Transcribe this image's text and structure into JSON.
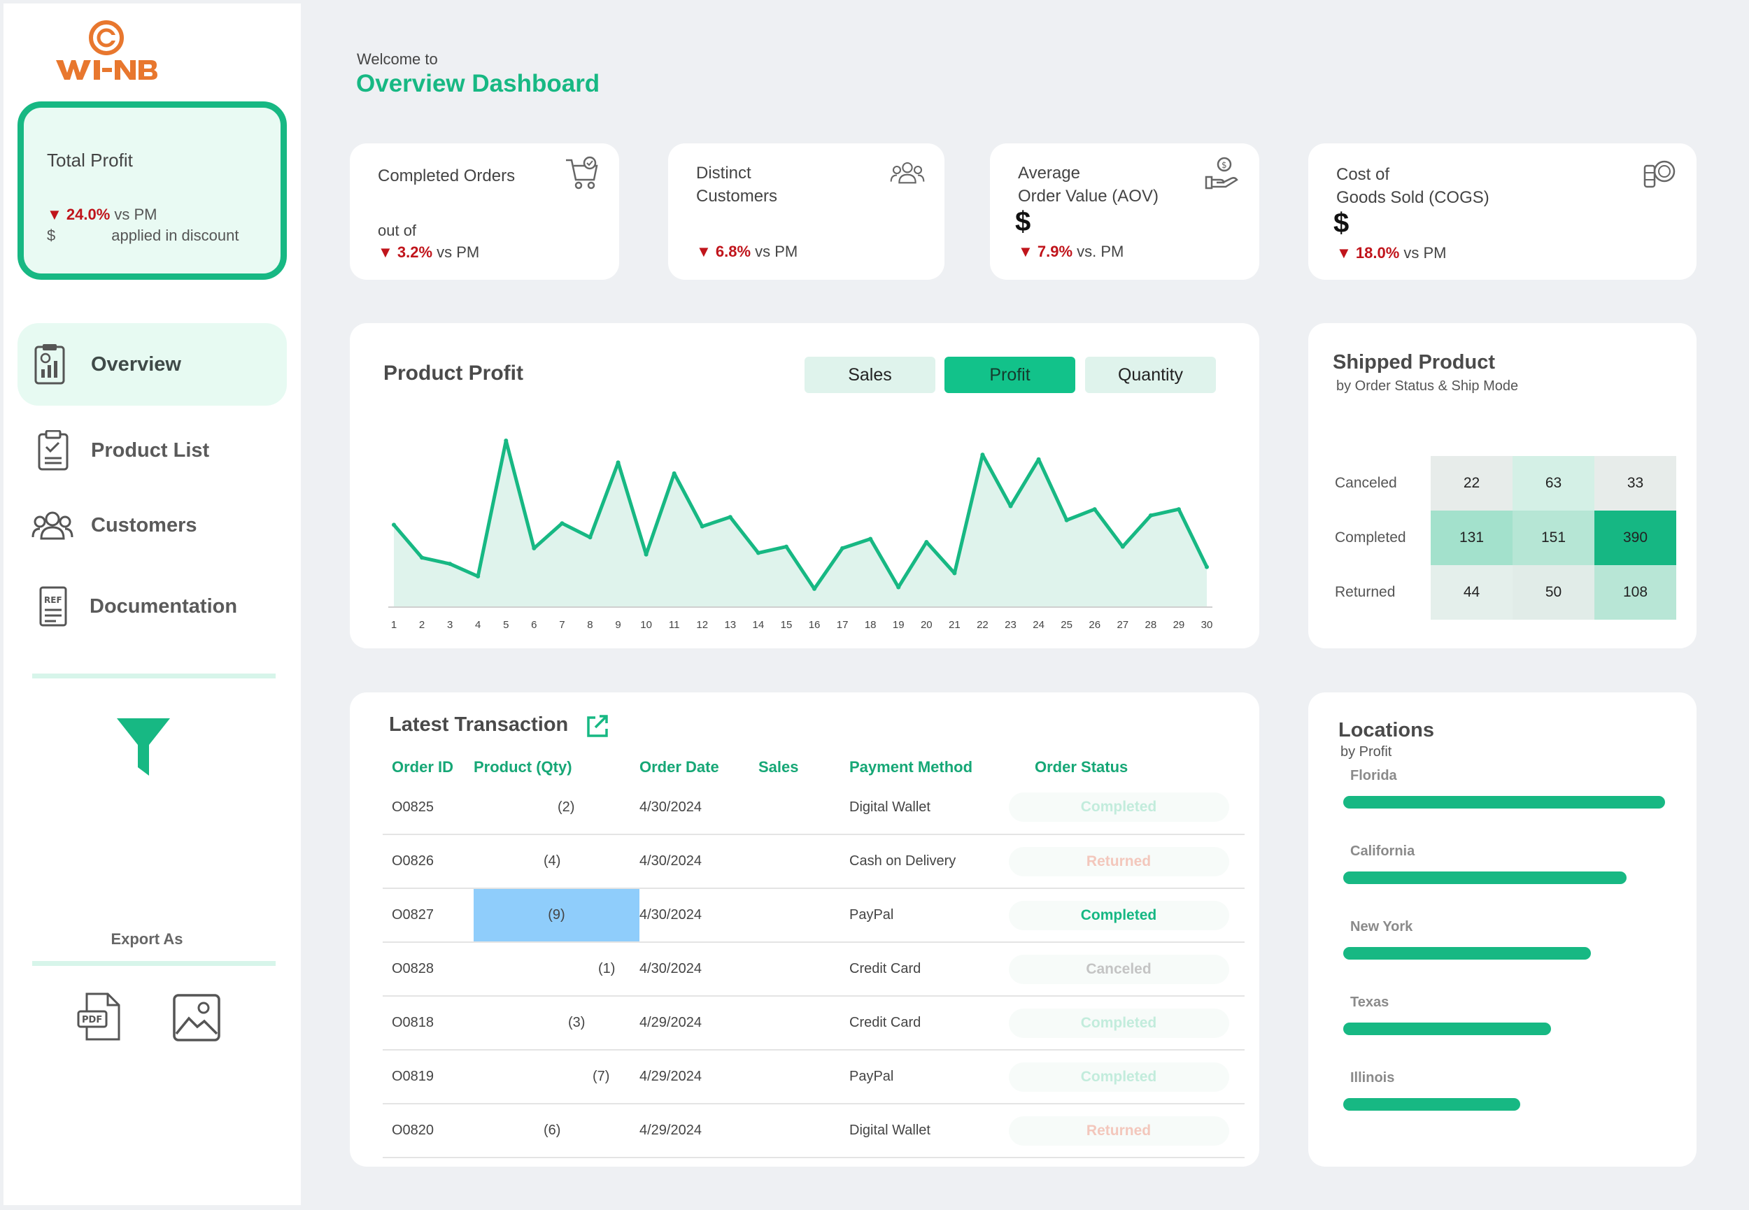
{
  "brand": {
    "logo_text": "WI-NB"
  },
  "kpi_sidebar": {
    "title": "Total Profit",
    "trend_pct": "▼ 24.0%",
    "trend_suffix": " vs PM",
    "currency": "$",
    "discount_text": "applied in discount"
  },
  "nav": [
    {
      "label": "Overview",
      "icon": "report-icon",
      "active": true
    },
    {
      "label": "Product List",
      "icon": "clipboard-icon",
      "active": false
    },
    {
      "label": "Customers",
      "icon": "users-icon",
      "active": false
    },
    {
      "label": "Documentation",
      "icon": "document-icon",
      "active": false
    }
  ],
  "filter": {
    "icon": "filter-icon"
  },
  "export": {
    "label": "Export As",
    "pdf_icon": "pdf-icon",
    "image_icon": "image-icon"
  },
  "header": {
    "welcome": "Welcome to",
    "title": "Overview Dashboard"
  },
  "kpis": [
    {
      "title": "Completed Orders",
      "sub": "out of",
      "dollar": "",
      "trend_pct": "▼ 3.2%",
      "trend_suffix": " vs PM",
      "icon": "cart-icon"
    },
    {
      "title": "Distinct\nCustomers",
      "sub": "",
      "dollar": "",
      "trend_pct": "▼ 6.8%",
      "trend_suffix": " vs PM",
      "icon": "users-icon"
    },
    {
      "title": "Average\nOrder Value (AOV)",
      "sub": "",
      "dollar": "$",
      "trend_pct": "▼ 7.9%",
      "trend_suffix": " vs. PM",
      "icon": "money-hand-icon"
    },
    {
      "title": "Cost of\nGoods Sold (COGS)",
      "sub": "",
      "dollar": "$",
      "trend_pct": "▼ 18.0%",
      "trend_suffix": " vs PM",
      "icon": "coins-icon"
    }
  ],
  "product_profit": {
    "title": "Product Profit",
    "toggles": [
      {
        "label": "Sales",
        "active": false
      },
      {
        "label": "Profit",
        "active": true
      },
      {
        "label": "Quantity",
        "active": false
      }
    ]
  },
  "chart_data": {
    "type": "area",
    "title": "Product Profit",
    "x": [
      1,
      2,
      3,
      4,
      5,
      6,
      7,
      8,
      9,
      10,
      11,
      12,
      13,
      14,
      15,
      16,
      17,
      18,
      19,
      20,
      21,
      22,
      23,
      24,
      25,
      26,
      27,
      28,
      29,
      30
    ],
    "values": [
      0.46,
      0.25,
      0.21,
      0.13,
      1.0,
      0.31,
      0.47,
      0.38,
      0.86,
      0.27,
      0.79,
      0.45,
      0.51,
      0.28,
      0.32,
      0.05,
      0.31,
      0.37,
      0.06,
      0.35,
      0.15,
      0.91,
      0.58,
      0.88,
      0.49,
      0.56,
      0.32,
      0.52,
      0.56,
      0.19
    ],
    "ylim": [
      0,
      1
    ],
    "color": "#17b883",
    "fill": "#dff3ec",
    "grid": false
  },
  "shipped": {
    "title": "Shipped Product",
    "subtitle": "by Order Status & Ship Mode",
    "rows": [
      {
        "label": "Canceled",
        "values": [
          "22",
          "63",
          "33"
        ],
        "shades": [
          "#e7ecea",
          "#d4f0e6",
          "#e7ecea"
        ]
      },
      {
        "label": "Completed",
        "values": [
          "131",
          "151",
          "390"
        ],
        "shades": [
          "#a3e1cc",
          "#b6e6d5",
          "#16b783"
        ]
      },
      {
        "label": "Returned",
        "values": [
          "44",
          "50",
          "108"
        ],
        "shades": [
          "#e4efeb",
          "#e1ece8",
          "#b8e6d6"
        ]
      }
    ]
  },
  "transactions": {
    "title": "Latest Transaction",
    "link_icon": "external-link-icon",
    "columns": [
      "Order ID",
      "Product (Qty)",
      "Order Date",
      "Sales",
      "Payment Method",
      "Order Status"
    ],
    "rows": [
      {
        "id": "O0825",
        "qty": "(2)",
        "date": "4/30/2024",
        "sales": "",
        "payment": "Digital Wallet",
        "status": "Completed",
        "status_color": "#c2ecdc",
        "highlight": false
      },
      {
        "id": "O0826",
        "qty": "(4)",
        "date": "4/30/2024",
        "sales": "",
        "payment": "Cash on Delivery",
        "status": "Returned",
        "status_color": "#f3c7bc",
        "highlight": false
      },
      {
        "id": "O0827",
        "qty": "(9)",
        "date": "4/30/2024",
        "sales": "",
        "payment": "PayPal",
        "status": "Completed",
        "status_color": "#16b783",
        "highlight": true
      },
      {
        "id": "O0828",
        "qty": "(1)",
        "date": "4/30/2024",
        "sales": "",
        "payment": "Credit Card",
        "status": "Canceled",
        "status_color": "#c4c4c4",
        "highlight": false
      },
      {
        "id": "O0818",
        "qty": "(3)",
        "date": "4/29/2024",
        "sales": "",
        "payment": "Credit Card",
        "status": "Completed",
        "status_color": "#c2ecdc",
        "highlight": false
      },
      {
        "id": "O0819",
        "qty": "(7)",
        "date": "4/29/2024",
        "sales": "",
        "payment": "PayPal",
        "status": "Completed",
        "status_color": "#c2ecdc",
        "highlight": false
      },
      {
        "id": "O0820",
        "qty": "(6)",
        "date": "4/29/2024",
        "sales": "",
        "payment": "Digital Wallet",
        "status": "Returned",
        "status_color": "#f3c7bc",
        "highlight": false
      }
    ]
  },
  "locations": {
    "title": "Locations",
    "subtitle": "by Profit",
    "items": [
      {
        "label": "Florida",
        "value": 1.0
      },
      {
        "label": "California",
        "value": 0.88
      },
      {
        "label": "New York",
        "value": 0.77
      },
      {
        "label": "Texas",
        "value": 0.645
      },
      {
        "label": "Illinois",
        "value": 0.55
      }
    ]
  }
}
